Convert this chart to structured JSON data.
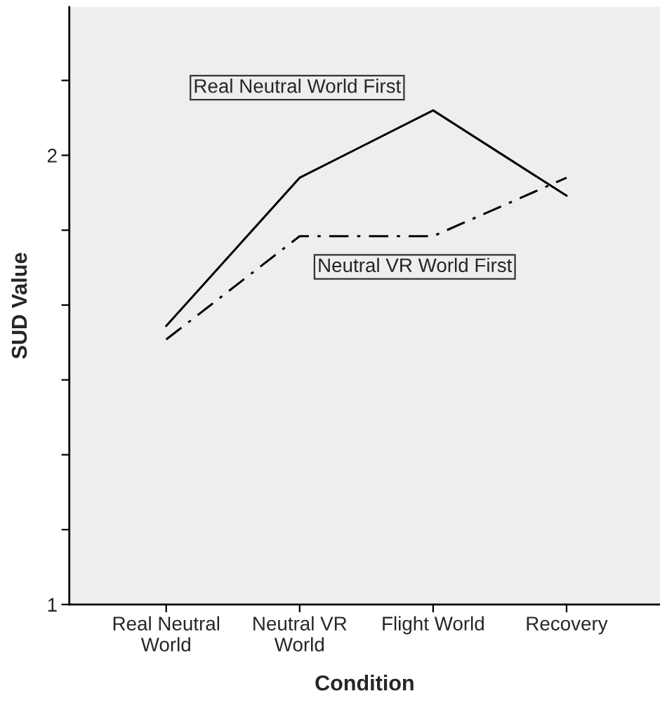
{
  "chart_data": {
    "type": "line",
    "xlabel": "Condition",
    "ylabel": "SUD Value",
    "categories": [
      "Real Neutral\nWorld",
      "Neutral VR\nWorld",
      "Flight World",
      "Recovery"
    ],
    "series": [
      {
        "name": "Real Neutral World First",
        "color": "#000000",
        "line_style": "solid",
        "values": [
          1.62,
          1.95,
          2.1,
          1.91
        ]
      },
      {
        "name": "Neutral VR World First",
        "color": "#000000",
        "line_style": "dashdot",
        "values": [
          1.59,
          1.82,
          1.82,
          1.95
        ]
      }
    ],
    "ylim": [
      1,
      2.33
    ],
    "yticks": [
      1,
      {
        "value": 1.1667,
        "label": null
      },
      {
        "value": 1.3333,
        "label": null
      },
      {
        "value": 1.5,
        "label": null
      },
      {
        "value": 1.6667,
        "label": null
      },
      {
        "value": 1.8333,
        "label": null
      },
      2,
      {
        "value": 2.1667,
        "label": null
      }
    ],
    "grid": false,
    "legend": false,
    "marker": "none"
  }
}
